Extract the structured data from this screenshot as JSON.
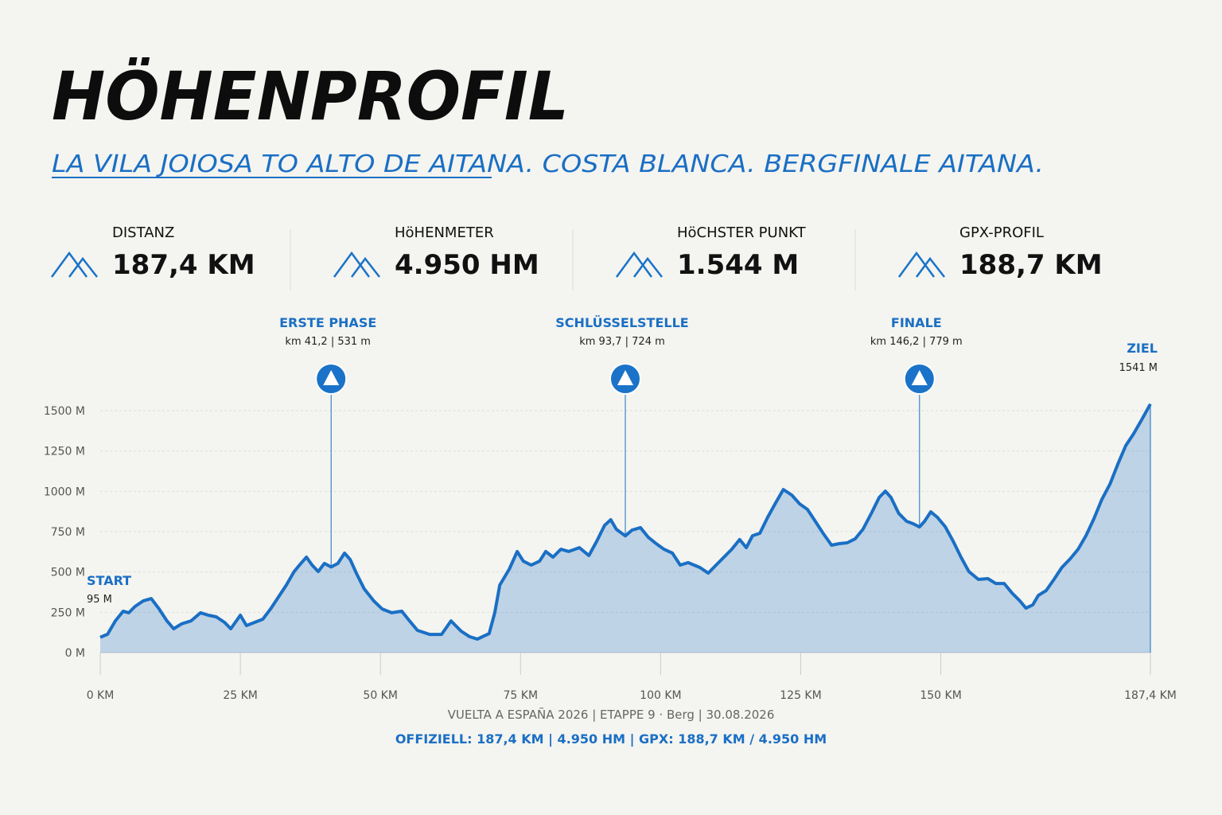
{
  "header": {
    "title": "HÖHENPROFIL",
    "subtitle": "LA VILA JOIOSA TO ALTO DE AITANA. COSTA BLANCA. BERGFINALE AITANA."
  },
  "stats": [
    {
      "label": "DISTANZ",
      "value": "187,4 KM"
    },
    {
      "label": "HöHENMETER",
      "value": "4.950 HM"
    },
    {
      "label": "HöCHSTER PUNKT",
      "value": "1.544 M"
    },
    {
      "label": "GPX-PROFIL",
      "value": "188,7 KM"
    }
  ],
  "chart_data": {
    "type": "area",
    "color": "#1a6fc4",
    "grid": true,
    "x": [
      0,
      1.3,
      2.7,
      4.1,
      5.1,
      6.2,
      7.7,
      9.1,
      10.5,
      11.9,
      13.1,
      14.5,
      16.2,
      17.9,
      19.3,
      20.7,
      22.2,
      23.3,
      25.0,
      26.1,
      27.5,
      29.0,
      30.4,
      31.8,
      33.2,
      34.6,
      35.8,
      36.8,
      37.8,
      38.9,
      40.0,
      41.2,
      42.4,
      43.6,
      44.6,
      45.7,
      47.1,
      48.8,
      50.3,
      52.0,
      53.8,
      55.2,
      56.6,
      58.8,
      60.9,
      62.6,
      64.4,
      65.9,
      67.3,
      69.4,
      70.4,
      71.3,
      73.0,
      74.4,
      75.5,
      76.9,
      78.4,
      79.5,
      80.8,
      82.2,
      83.6,
      85.5,
      87.2,
      88.6,
      90.0,
      91.1,
      92.1,
      93.7,
      94.9,
      96.4,
      97.8,
      99.2,
      100.6,
      102.1,
      103.5,
      104.9,
      107.0,
      108.5,
      109.9,
      111.3,
      112.7,
      114.1,
      115.3,
      116.4,
      117.7,
      119.1,
      120.5,
      121.9,
      123.4,
      124.8,
      126.2,
      127.6,
      129.0,
      130.5,
      131.9,
      133.3,
      134.7,
      136.1,
      137.6,
      139.0,
      140.1,
      141.1,
      142.5,
      143.9,
      145.1,
      146.2,
      147.1,
      148.2,
      149.4,
      150.8,
      152.2,
      153.6,
      155.0,
      156.7,
      158.4,
      159.8,
      161.3,
      162.7,
      164.1,
      165.2,
      166.4,
      167.4,
      168.8,
      170.2,
      171.6,
      173.1,
      174.5,
      175.9,
      177.3,
      178.7,
      180.2,
      181.6,
      183.0,
      184.4,
      185.8,
      187.4
    ],
    "values": [
      95,
      114,
      197,
      257,
      247,
      286,
      321,
      335,
      271,
      197,
      148,
      178,
      197,
      247,
      232,
      222,
      187,
      148,
      232,
      168,
      187,
      207,
      271,
      345,
      419,
      503,
      553,
      592,
      543,
      503,
      553,
      531,
      553,
      617,
      577,
      493,
      395,
      321,
      271,
      247,
      257,
      197,
      138,
      113,
      113,
      197,
      133,
      99,
      84,
      118,
      247,
      419,
      518,
      627,
      567,
      543,
      567,
      627,
      592,
      641,
      627,
      651,
      602,
      691,
      789,
      824,
      765,
      724,
      760,
      775,
      715,
      676,
      641,
      617,
      543,
      558,
      528,
      493,
      543,
      592,
      641,
      701,
      651,
      725,
      740,
      839,
      927,
      1011,
      977,
      922,
      888,
      814,
      740,
      666,
      676,
      681,
      705,
      765,
      863,
      962,
      1001,
      962,
      863,
      814,
      799,
      779,
      814,
      873,
      839,
      780,
      691,
      592,
      503,
      454,
      459,
      429,
      429,
      370,
      321,
      276,
      296,
      355,
      385,
      454,
      528,
      582,
      641,
      725,
      829,
      947,
      1046,
      1169,
      1283,
      1357,
      1441,
      1541
    ],
    "xlim": [
      0,
      187.4
    ],
    "ylim": [
      0,
      1500
    ],
    "xticks": [
      {
        "value": 0,
        "label": "0 KM"
      },
      {
        "value": 25,
        "label": "25 KM"
      },
      {
        "value": 50,
        "label": "50 KM"
      },
      {
        "value": 75,
        "label": "75 KM"
      },
      {
        "value": 100,
        "label": "100 KM"
      },
      {
        "value": 125,
        "label": "125 KM"
      },
      {
        "value": 150,
        "label": "150 KM"
      },
      {
        "value": 187.4,
        "label": "187,4 KM"
      }
    ],
    "yticks": [
      {
        "value": 0,
        "label": "0 M"
      },
      {
        "value": 250,
        "label": "250 M"
      },
      {
        "value": 500,
        "label": "500 M"
      },
      {
        "value": 750,
        "label": "750 M"
      },
      {
        "value": 1000,
        "label": "1000 M"
      },
      {
        "value": 1250,
        "label": "1250 M"
      },
      {
        "value": 1500,
        "label": "1500 M"
      }
    ],
    "annotations": [
      {
        "label": "ERSTE PHASE",
        "text": "km 41,2 | 531 m",
        "x": 41.2,
        "y": 531
      },
      {
        "label": "SCHLÜSSELSTELLE",
        "text": "km 93,7 | 724 m",
        "x": 93.7,
        "y": 724
      },
      {
        "label": "FINALE",
        "text": "km 146,2 | 779 m",
        "x": 146.2,
        "y": 779
      }
    ],
    "start": {
      "label": "START",
      "text": "95 M"
    },
    "finish": {
      "label": "ZIEL",
      "text": "1541 M"
    }
  },
  "footer": {
    "line1": "VUELTA A ESPAÑA 2026 | ETAPPE 9 · Berg | 30.08.2026",
    "line2": "OFFIZIELL: 187,4 KM | 4.950 HM | GPX: 188,7 KM / 4.950 HM"
  }
}
